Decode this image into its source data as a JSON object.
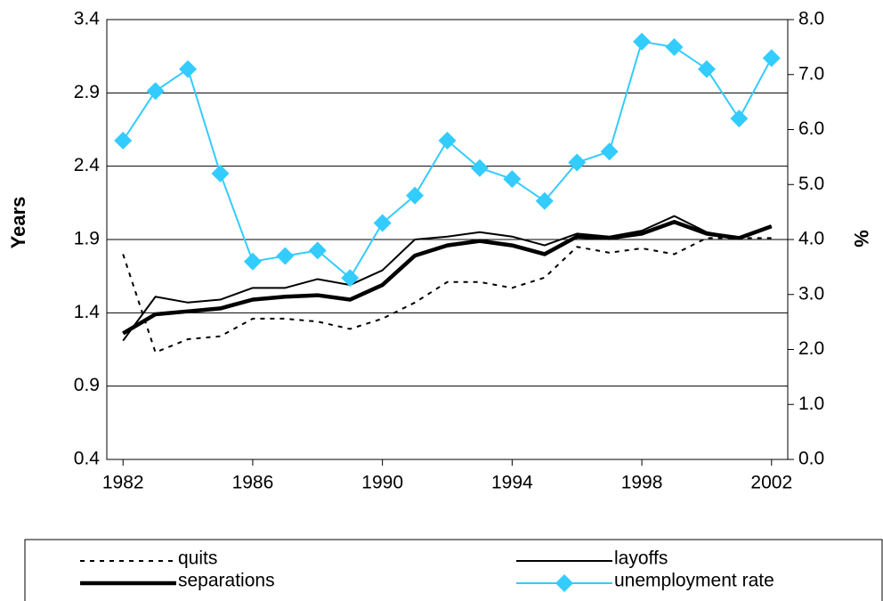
{
  "chart_data": {
    "type": "line",
    "x": [
      1982,
      1983,
      1984,
      1985,
      1986,
      1987,
      1988,
      1989,
      1990,
      1991,
      1992,
      1993,
      1994,
      1995,
      1996,
      1997,
      1998,
      1999,
      2000,
      2001,
      2002
    ],
    "xlim": [
      1981.5,
      2002.5
    ],
    "xticks": [
      1982,
      1986,
      1990,
      1994,
      1998,
      2002
    ],
    "y_label": "Years",
    "y2_label": "%",
    "ylim": [
      0.4,
      3.4
    ],
    "yticks": [
      0.4,
      0.9,
      1.4,
      1.9,
      2.4,
      2.9,
      3.4
    ],
    "y2lim": [
      0,
      8
    ],
    "y2ticks": [
      {
        "value": 0,
        "label": "0.0"
      },
      {
        "value": 1,
        "label": "1.0"
      },
      {
        "value": 2,
        "label": "2.0"
      },
      {
        "value": 3,
        "label": "3.0"
      },
      {
        "value": 4,
        "label": "4.0"
      },
      {
        "value": 5,
        "label": "5.0"
      },
      {
        "value": 6,
        "label": "6.0"
      },
      {
        "value": 7,
        "label": "7.0"
      },
      {
        "value": 8,
        "label": "8.0"
      }
    ],
    "grid": true,
    "legend_position": "bottom",
    "series": [
      {
        "name": "quits",
        "color": "#000000",
        "width": 2,
        "dash": "5,6",
        "values": [
          1.8,
          1.13,
          1.22,
          1.24,
          1.36,
          1.36,
          1.34,
          1.29,
          1.36,
          1.47,
          1.61,
          1.61,
          1.57,
          1.64,
          1.85,
          1.81,
          1.84,
          1.8,
          1.91,
          1.91,
          1.91
        ]
      },
      {
        "name": "layoffs",
        "color": "#000000",
        "width": 2,
        "values": [
          1.21,
          1.51,
          1.47,
          1.49,
          1.57,
          1.57,
          1.63,
          1.59,
          1.69,
          1.9,
          1.92,
          1.95,
          1.92,
          1.86,
          1.94,
          1.92,
          1.96,
          2.06,
          1.95,
          1.91,
          1.99
        ]
      },
      {
        "name": "separations",
        "color": "#000000",
        "width": 4.5,
        "values": [
          1.26,
          1.39,
          1.41,
          1.43,
          1.49,
          1.51,
          1.52,
          1.49,
          1.59,
          1.79,
          1.86,
          1.89,
          1.86,
          1.8,
          1.92,
          1.91,
          1.94,
          2.02,
          1.94,
          1.91,
          1.99
        ]
      },
      {
        "name": "unemployment rate",
        "color": "#33ccff",
        "width": 2,
        "marker": "diamond",
        "axis": "y2",
        "values": [
          5.8,
          6.7,
          7.1,
          5.2,
          3.6,
          3.7,
          3.8,
          3.3,
          4.3,
          4.8,
          5.8,
          5.3,
          5.1,
          4.7,
          5.4,
          5.6,
          7.6,
          7.5,
          7.1,
          6.2,
          7.3
        ]
      }
    ]
  }
}
